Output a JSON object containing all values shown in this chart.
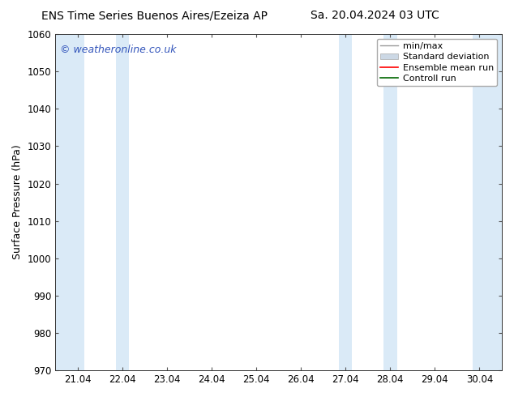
{
  "title_left": "ENS Time Series Buenos Aires/Ezeiza AP",
  "title_right": "Sa. 20.04.2024 03 UTC",
  "ylabel": "Surface Pressure (hPa)",
  "ylim": [
    970,
    1060
  ],
  "yticks": [
    970,
    980,
    990,
    1000,
    1010,
    1020,
    1030,
    1040,
    1050,
    1060
  ],
  "x_tick_labels": [
    "21.04",
    "22.04",
    "23.04",
    "24.04",
    "25.04",
    "26.04",
    "27.04",
    "28.04",
    "29.04",
    "30.04"
  ],
  "x_tick_positions": [
    0,
    1,
    2,
    3,
    4,
    5,
    6,
    7,
    8,
    9
  ],
  "xlim": [
    -0.5,
    9.5
  ],
  "shaded_bands": [
    {
      "x_start": -0.5,
      "x_end": 0.15,
      "color": "#daeaf7"
    },
    {
      "x_start": 0.85,
      "x_end": 1.15,
      "color": "#daeaf7"
    },
    {
      "x_start": 5.85,
      "x_end": 6.15,
      "color": "#daeaf7"
    },
    {
      "x_start": 6.85,
      "x_end": 7.15,
      "color": "#daeaf7"
    },
    {
      "x_start": 8.85,
      "x_end": 9.5,
      "color": "#daeaf7"
    }
  ],
  "watermark_text": "© weatheronline.co.uk",
  "watermark_color": "#3355bb",
  "background_color": "#ffffff",
  "legend_entries": [
    {
      "label": "min/max",
      "color": "#aaaaaa",
      "style": "errorbar"
    },
    {
      "label": "Standard deviation",
      "color": "#ccd8e5",
      "style": "fill"
    },
    {
      "label": "Ensemble mean run",
      "color": "#ff0000",
      "style": "line"
    },
    {
      "label": "Controll run",
      "color": "#006600",
      "style": "line"
    }
  ],
  "title_fontsize": 10,
  "axis_label_fontsize": 9,
  "tick_fontsize": 8.5,
  "legend_fontsize": 8,
  "watermark_fontsize": 9
}
